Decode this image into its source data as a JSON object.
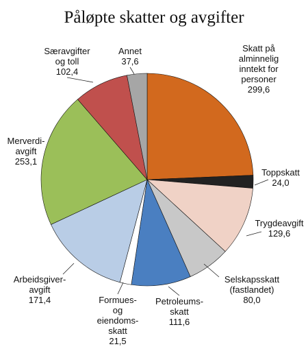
{
  "chart_data": {
    "type": "pie",
    "title": "Påløpte skatter og avgifter",
    "slices": [
      {
        "label": [
          "Skatt på",
          "alminnelig",
          "inntekt for",
          "personer"
        ],
        "value": 299.6,
        "value_text": "299,6",
        "color": "#d2691e"
      },
      {
        "label": [
          "Toppskatt"
        ],
        "value": 24.0,
        "value_text": "24,0",
        "color": "#222222"
      },
      {
        "label": [
          "Trygdeavgift"
        ],
        "value": 129.6,
        "value_text": "129,6",
        "color": "#f0d2c6"
      },
      {
        "label": [
          "Selskapsskatt",
          "(fastlandet)"
        ],
        "value": 80.0,
        "value_text": "80,0",
        "color": "#c8c8c8"
      },
      {
        "label": [
          "Petroleums-",
          "skatt"
        ],
        "value": 111.6,
        "value_text": "111,6",
        "color": "#4a7fc1"
      },
      {
        "label": [
          "Formues-",
          "og",
          "eiendoms-",
          "skatt"
        ],
        "value": 21.5,
        "value_text": "21,5",
        "color": "#ffffff"
      },
      {
        "label": [
          "Arbeidsgiver-",
          "avgift"
        ],
        "value": 171.4,
        "value_text": "171,4",
        "color": "#b9cde6"
      },
      {
        "label": [
          "Merverdi-",
          "avgift"
        ],
        "value": 253.1,
        "value_text": "253,1",
        "color": "#9bbf59"
      },
      {
        "label": [
          "Særavgifter",
          "og toll"
        ],
        "value": 102.4,
        "value_text": "102,4",
        "color": "#c0504d"
      },
      {
        "label": [
          "Annet"
        ],
        "value": 37.6,
        "value_text": "37,6",
        "color": "#a6a6a6"
      }
    ]
  }
}
